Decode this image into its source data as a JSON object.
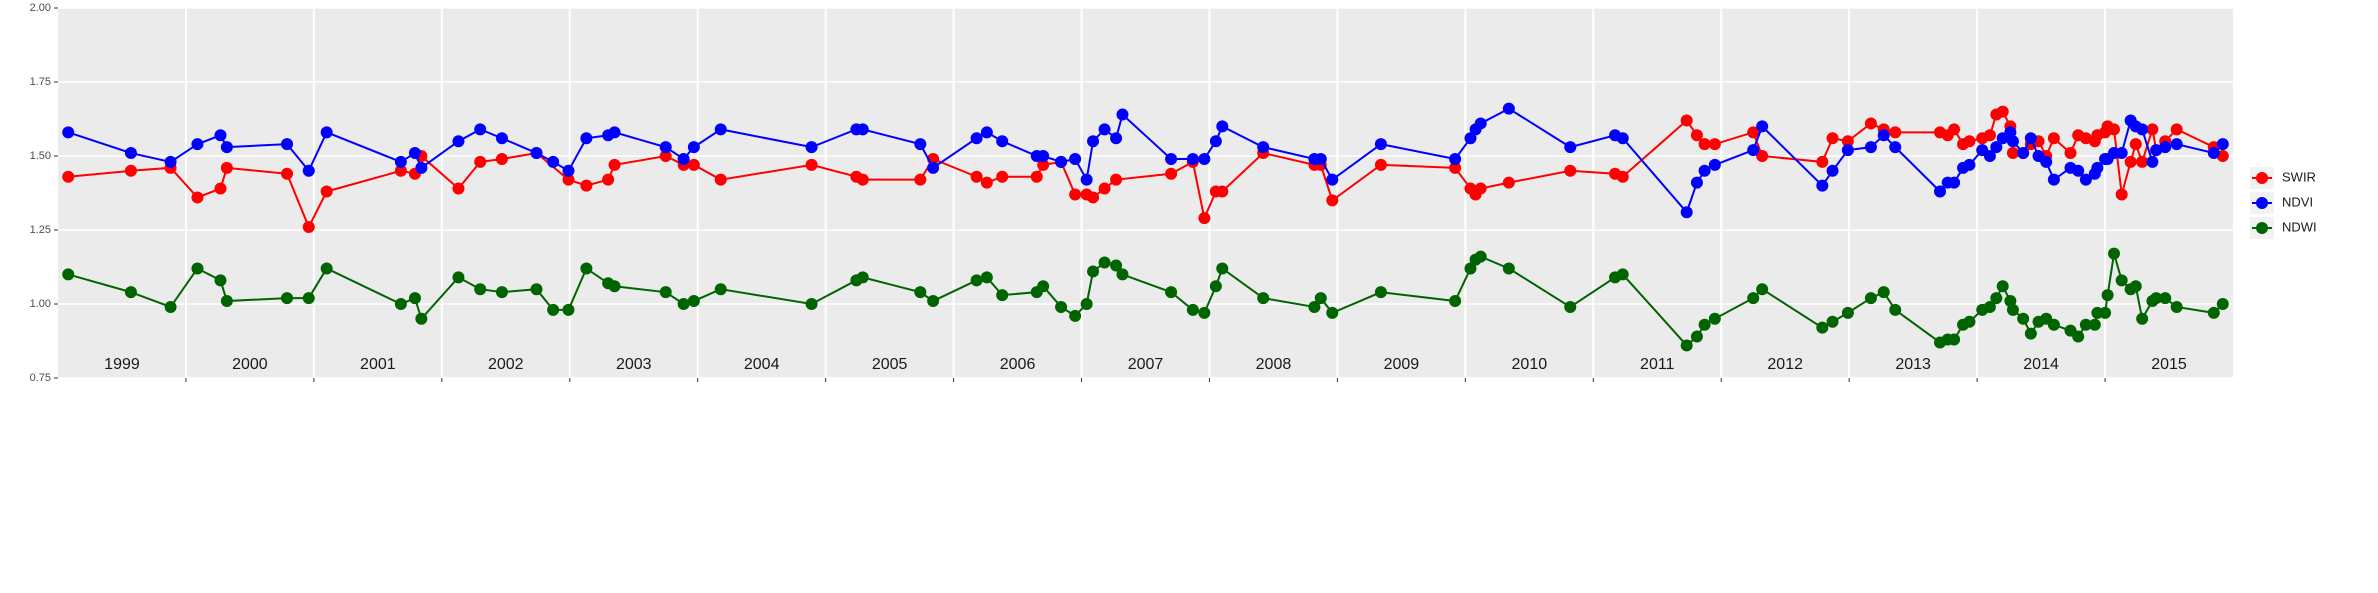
{
  "chart_data": {
    "type": "line",
    "xlim": [
      1999,
      2016
    ],
    "ylim": [
      0.75,
      2.0
    ],
    "yticks": [
      {
        "value": 0.75,
        "label": "0.75"
      },
      {
        "value": 1.0,
        "label": "1.00"
      },
      {
        "value": 1.25,
        "label": "1.25"
      },
      {
        "value": 1.5,
        "label": "1.50"
      },
      {
        "value": 1.75,
        "label": "1.75"
      },
      {
        "value": 2.0,
        "label": "2.00"
      }
    ],
    "xticks": [
      {
        "value": 1999.5,
        "label": "1999"
      },
      {
        "value": 2000.5,
        "label": "2000"
      },
      {
        "value": 2001.5,
        "label": "2001"
      },
      {
        "value": 2002.5,
        "label": "2002"
      },
      {
        "value": 2003.5,
        "label": "2003"
      },
      {
        "value": 2004.5,
        "label": "2004"
      },
      {
        "value": 2005.5,
        "label": "2005"
      },
      {
        "value": 2006.5,
        "label": "2006"
      },
      {
        "value": 2007.5,
        "label": "2007"
      },
      {
        "value": 2008.5,
        "label": "2008"
      },
      {
        "value": 2009.5,
        "label": "2009"
      },
      {
        "value": 2010.5,
        "label": "2010"
      },
      {
        "value": 2011.5,
        "label": "2011"
      },
      {
        "value": 2012.5,
        "label": "2012"
      },
      {
        "value": 2013.5,
        "label": "2013"
      },
      {
        "value": 2014.5,
        "label": "2014"
      },
      {
        "value": 2015.5,
        "label": "2015"
      }
    ],
    "xgrid": [
      2000,
      2001,
      2002,
      2003,
      2004,
      2005,
      2006,
      2007,
      2008,
      2009,
      2010,
      2011,
      2012,
      2013,
      2014,
      2015
    ],
    "grid": true,
    "legend": "right",
    "series": [
      {
        "name": "SWIR",
        "color": "#ff0000",
        "x": [
          1999.08,
          1999.57,
          1999.88,
          2000.09,
          2000.27,
          2000.32,
          2000.79,
          2000.96,
          2001.1,
          2001.68,
          2001.79,
          2001.84,
          2002.13,
          2002.3,
          2002.47,
          2002.74,
          2002.99,
          2003.13,
          2003.3,
          2003.35,
          2003.75,
          2003.89,
          2003.97,
          2004.18,
          2004.89,
          2005.24,
          2005.29,
          2005.74,
          2005.84,
          2006.18,
          2006.26,
          2006.38,
          2006.65,
          2006.7,
          2006.84,
          2006.95,
          2007.04,
          2007.09,
          2007.18,
          2007.27,
          2007.7,
          2007.87,
          2007.96,
          2008.05,
          2008.1,
          2008.42,
          2008.82,
          2008.87,
          2008.96,
          2009.34,
          2009.92,
          2010.04,
          2010.08,
          2010.12,
          2010.34,
          2010.82,
          2011.17,
          2011.23,
          2011.73,
          2011.81,
          2011.87,
          2011.95,
          2012.25,
          2012.32,
          2012.79,
          2012.87,
          2012.99,
          2013.17,
          2013.27,
          2013.36,
          2013.71,
          2013.77,
          2013.82,
          2013.89,
          2013.94,
          2014.04,
          2014.1,
          2014.15,
          2014.2,
          2014.26,
          2014.28,
          2014.36,
          2014.42,
          2014.48,
          2014.54,
          2014.6,
          2014.73,
          2014.79,
          2014.85,
          2014.92,
          2014.94,
          2015.0,
          2015.02,
          2015.07,
          2015.13,
          2015.2,
          2015.24,
          2015.29,
          2015.37,
          2015.4,
          2015.47,
          2015.56,
          2015.85,
          2015.92
        ],
        "values": [
          1.43,
          1.45,
          1.46,
          1.36,
          1.39,
          1.46,
          1.44,
          1.26,
          1.38,
          1.45,
          1.44,
          1.5,
          1.39,
          1.48,
          1.49,
          1.51,
          1.42,
          1.4,
          1.42,
          1.47,
          1.5,
          1.47,
          1.47,
          1.42,
          1.47,
          1.43,
          1.42,
          1.42,
          1.49,
          1.43,
          1.41,
          1.43,
          1.43,
          1.47,
          1.48,
          1.37,
          1.37,
          1.36,
          1.39,
          1.42,
          1.44,
          1.48,
          1.29,
          1.38,
          1.38,
          1.51,
          1.47,
          1.47,
          1.35,
          1.47,
          1.46,
          1.39,
          1.37,
          1.39,
          1.41,
          1.45,
          1.44,
          1.43,
          1.62,
          1.57,
          1.54,
          1.54,
          1.58,
          1.5,
          1.48,
          1.56,
          1.55,
          1.61,
          1.59,
          1.58,
          1.58,
          1.57,
          1.59,
          1.54,
          1.55,
          1.56,
          1.57,
          1.64,
          1.65,
          1.6,
          1.51,
          1.51,
          1.54,
          1.55,
          1.5,
          1.56,
          1.51,
          1.57,
          1.56,
          1.55,
          1.57,
          1.58,
          1.6,
          1.59,
          1.37,
          1.48,
          1.54,
          1.48,
          1.59,
          1.52,
          1.55,
          1.59,
          1.53,
          1.5
        ]
      },
      {
        "name": "NDVI",
        "color": "#0000ff",
        "x": [
          1999.08,
          1999.57,
          1999.88,
          2000.09,
          2000.27,
          2000.32,
          2000.79,
          2000.96,
          2001.1,
          2001.68,
          2001.79,
          2001.84,
          2002.13,
          2002.3,
          2002.47,
          2002.74,
          2002.87,
          2002.99,
          2003.13,
          2003.3,
          2003.35,
          2003.75,
          2003.89,
          2003.97,
          2004.18,
          2004.89,
          2005.24,
          2005.29,
          2005.74,
          2005.84,
          2006.18,
          2006.26,
          2006.38,
          2006.65,
          2006.7,
          2006.84,
          2006.95,
          2007.04,
          2007.09,
          2007.18,
          2007.27,
          2007.32,
          2007.7,
          2007.87,
          2007.96,
          2008.05,
          2008.1,
          2008.42,
          2008.82,
          2008.87,
          2008.96,
          2009.34,
          2009.92,
          2010.04,
          2010.08,
          2010.12,
          2010.34,
          2010.82,
          2011.17,
          2011.23,
          2011.73,
          2011.81,
          2011.87,
          2011.95,
          2012.25,
          2012.32,
          2012.79,
          2012.87,
          2012.99,
          2013.17,
          2013.27,
          2013.36,
          2013.71,
          2013.77,
          2013.82,
          2013.89,
          2013.94,
          2014.04,
          2014.1,
          2014.15,
          2014.2,
          2014.26,
          2014.28,
          2014.36,
          2014.42,
          2014.48,
          2014.54,
          2014.6,
          2014.73,
          2014.79,
          2014.85,
          2014.92,
          2014.94,
          2015.0,
          2015.02,
          2015.07,
          2015.13,
          2015.2,
          2015.24,
          2015.29,
          2015.37,
          2015.4,
          2015.47,
          2015.56,
          2015.85,
          2015.92
        ],
        "values": [
          1.58,
          1.51,
          1.48,
          1.54,
          1.57,
          1.53,
          1.54,
          1.45,
          1.58,
          1.48,
          1.51,
          1.46,
          1.55,
          1.59,
          1.56,
          1.51,
          1.48,
          1.45,
          1.56,
          1.57,
          1.58,
          1.53,
          1.49,
          1.53,
          1.59,
          1.53,
          1.59,
          1.59,
          1.54,
          1.46,
          1.56,
          1.58,
          1.55,
          1.5,
          1.5,
          1.48,
          1.49,
          1.42,
          1.55,
          1.59,
          1.56,
          1.64,
          1.49,
          1.49,
          1.49,
          1.55,
          1.6,
          1.53,
          1.49,
          1.49,
          1.42,
          1.54,
          1.49,
          1.56,
          1.59,
          1.61,
          1.66,
          1.53,
          1.57,
          1.56,
          1.31,
          1.41,
          1.45,
          1.47,
          1.52,
          1.6,
          1.4,
          1.45,
          1.52,
          1.53,
          1.57,
          1.53,
          1.38,
          1.41,
          1.41,
          1.46,
          1.47,
          1.52,
          1.5,
          1.53,
          1.56,
          1.58,
          1.55,
          1.51,
          1.56,
          1.5,
          1.48,
          1.42,
          1.46,
          1.45,
          1.42,
          1.44,
          1.46,
          1.49,
          1.49,
          1.51,
          1.51,
          1.62,
          1.6,
          1.59,
          1.48,
          1.52,
          1.53,
          1.54,
          1.51,
          1.54
        ]
      },
      {
        "name": "NDWI",
        "color": "#006400",
        "x": [
          1999.08,
          1999.57,
          1999.88,
          2000.09,
          2000.27,
          2000.32,
          2000.79,
          2000.96,
          2001.1,
          2001.68,
          2001.79,
          2001.84,
          2002.13,
          2002.3,
          2002.47,
          2002.74,
          2002.87,
          2002.99,
          2003.13,
          2003.3,
          2003.35,
          2003.75,
          2003.89,
          2003.97,
          2004.18,
          2004.89,
          2005.24,
          2005.29,
          2005.74,
          2005.84,
          2006.18,
          2006.26,
          2006.38,
          2006.65,
          2006.7,
          2006.84,
          2006.95,
          2007.04,
          2007.09,
          2007.18,
          2007.27,
          2007.32,
          2007.7,
          2007.87,
          2007.96,
          2008.05,
          2008.1,
          2008.42,
          2008.82,
          2008.87,
          2008.96,
          2009.34,
          2009.92,
          2010.04,
          2010.08,
          2010.12,
          2010.34,
          2010.82,
          2011.17,
          2011.23,
          2011.73,
          2011.81,
          2011.87,
          2011.95,
          2012.25,
          2012.32,
          2012.79,
          2012.87,
          2012.99,
          2013.17,
          2013.27,
          2013.36,
          2013.71,
          2013.77,
          2013.82,
          2013.89,
          2013.94,
          2014.04,
          2014.1,
          2014.15,
          2014.2,
          2014.26,
          2014.28,
          2014.36,
          2014.42,
          2014.48,
          2014.54,
          2014.6,
          2014.73,
          2014.79,
          2014.85,
          2014.92,
          2014.94,
          2015.0,
          2015.02,
          2015.07,
          2015.13,
          2015.2,
          2015.24,
          2015.29,
          2015.37,
          2015.4,
          2015.47,
          2015.56,
          2015.85,
          2015.92
        ],
        "values": [
          1.1,
          1.04,
          0.99,
          1.12,
          1.08,
          1.01,
          1.02,
          1.02,
          1.12,
          1.0,
          1.02,
          0.95,
          1.09,
          1.05,
          1.04,
          1.05,
          0.98,
          0.98,
          1.12,
          1.07,
          1.06,
          1.04,
          1.0,
          1.01,
          1.05,
          1.0,
          1.08,
          1.09,
          1.04,
          1.01,
          1.08,
          1.09,
          1.03,
          1.04,
          1.06,
          0.99,
          0.96,
          1.0,
          1.11,
          1.14,
          1.13,
          1.1,
          1.04,
          0.98,
          0.97,
          1.06,
          1.12,
          1.02,
          0.99,
          1.02,
          0.97,
          1.04,
          1.01,
          1.12,
          1.15,
          1.16,
          1.12,
          0.99,
          1.09,
          1.1,
          0.86,
          0.89,
          0.93,
          0.95,
          1.02,
          1.05,
          0.92,
          0.94,
          0.97,
          1.02,
          1.04,
          0.98,
          0.87,
          0.88,
          0.88,
          0.93,
          0.94,
          0.98,
          0.99,
          1.02,
          1.06,
          1.01,
          0.98,
          0.95,
          0.9,
          0.94,
          0.95,
          0.93,
          0.91,
          0.89,
          0.93,
          0.93,
          0.97,
          0.97,
          1.03,
          1.17,
          1.08,
          1.05,
          1.06,
          0.95,
          1.01,
          1.02,
          1.02,
          0.99,
          0.97,
          1.0
        ]
      }
    ]
  }
}
